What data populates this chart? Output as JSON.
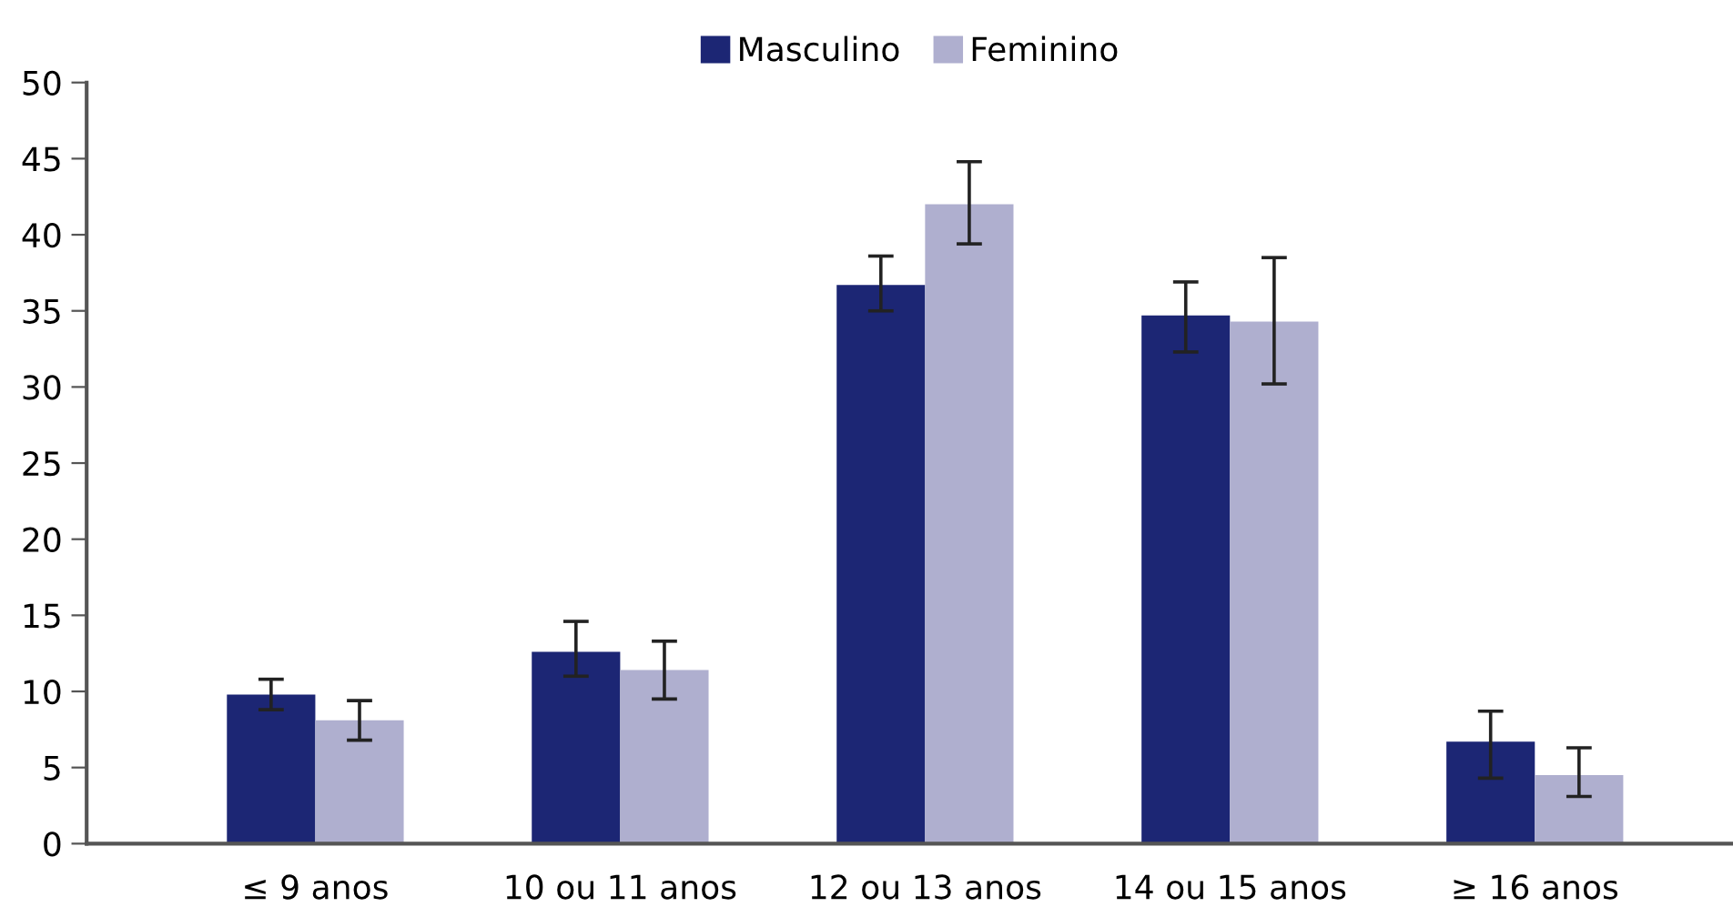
{
  "chart_data": {
    "type": "bar",
    "categories": [
      "≤ 9 anos",
      "10 ou 11 anos",
      "12 ou 13 anos",
      "14 ou 15 anos",
      "≥ 16 anos"
    ],
    "series": [
      {
        "name": "Masculino",
        "color": "#1c2674",
        "values": [
          9.8,
          12.6,
          36.7,
          34.7,
          6.7
        ],
        "errors": [
          [
            8.8,
            10.8
          ],
          [
            11.0,
            14.6
          ],
          [
            35.0,
            38.6
          ],
          [
            32.3,
            36.9
          ],
          [
            4.3,
            8.7
          ]
        ]
      },
      {
        "name": "Feminino",
        "color": "#afafcf",
        "values": [
          8.1,
          11.4,
          42.0,
          34.3,
          4.5
        ],
        "errors": [
          [
            6.8,
            9.4
          ],
          [
            9.5,
            13.3
          ],
          [
            39.4,
            44.8
          ],
          [
            30.2,
            38.5
          ],
          [
            3.1,
            6.3
          ]
        ]
      }
    ],
    "ylim": [
      0,
      50
    ],
    "yticks": [
      0,
      5,
      10,
      15,
      20,
      25,
      30,
      35,
      40,
      45,
      50
    ],
    "grid": false,
    "legend": "top"
  }
}
